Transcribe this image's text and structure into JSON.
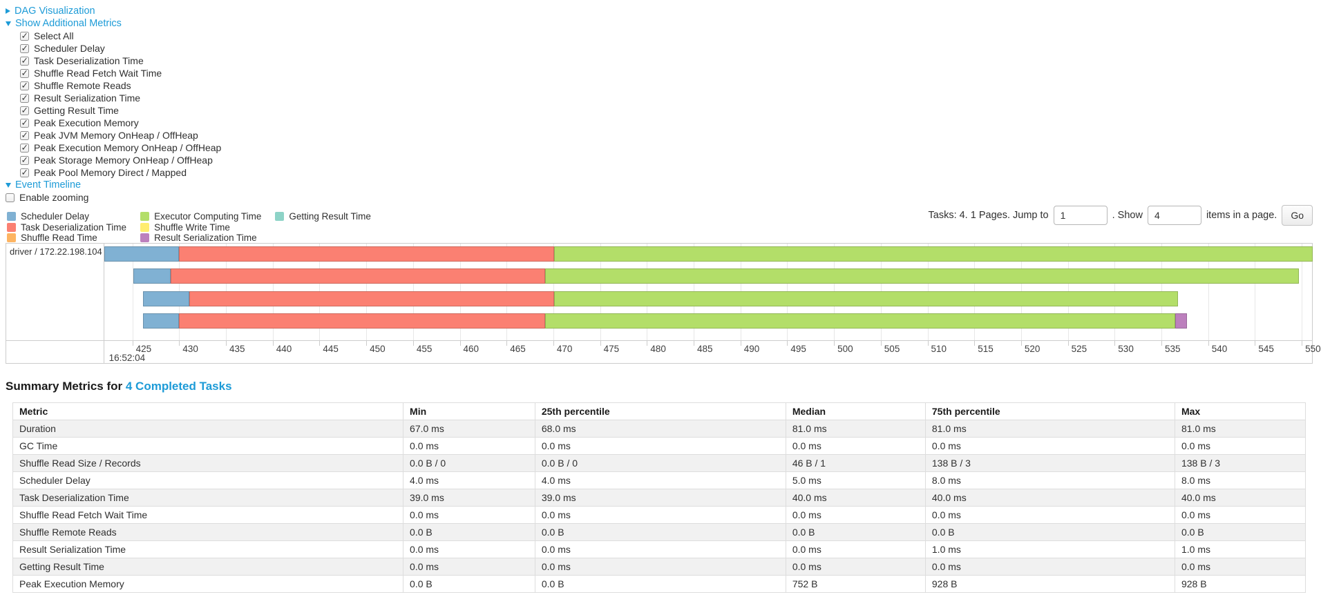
{
  "controls": {
    "dag_label": "DAG Visualization",
    "metrics_label": "Show Additional Metrics",
    "metric_checkboxes": [
      "Select All",
      "Scheduler Delay",
      "Task Deserialization Time",
      "Shuffle Read Fetch Wait Time",
      "Shuffle Remote Reads",
      "Result Serialization Time",
      "Getting Result Time",
      "Peak Execution Memory",
      "Peak JVM Memory OnHeap / OffHeap",
      "Peak Execution Memory OnHeap / OffHeap",
      "Peak Storage Memory OnHeap / OffHeap",
      "Peak Pool Memory Direct / Mapped"
    ],
    "event_timeline_label": "Event Timeline",
    "enable_zooming_label": "Enable zooming"
  },
  "legend": {
    "columns": [
      [
        {
          "label": "Scheduler Delay",
          "color": "#80B1D3"
        },
        {
          "label": "Task Deserialization Time",
          "color": "#FB8072"
        },
        {
          "label": "Shuffle Read Time",
          "color": "#FDB462"
        }
      ],
      [
        {
          "label": "Executor Computing Time",
          "color": "#B3DE69"
        },
        {
          "label": "Shuffle Write Time",
          "color": "#FFED6F"
        },
        {
          "label": "Result Serialization Time",
          "color": "#BC80BD"
        }
      ],
      [
        {
          "label": "Getting Result Time",
          "color": "#8DD3C7"
        }
      ]
    ]
  },
  "pagination": {
    "tasks_text": "Tasks: 4. 1 Pages. Jump to",
    "jump_value": "1",
    "show_text": ". Show",
    "show_value": "4",
    "items_text": "items in a page.",
    "go_label": "Go"
  },
  "chart_data": {
    "type": "timeline",
    "executor_label": "driver / 172.22.198.104",
    "axis": {
      "min": 422.0,
      "max": 551.1,
      "tick_start": 425,
      "tick_end": 550,
      "tick_step": 5,
      "unit": "ms",
      "start_time_label": "16:52:04",
      "start_time_tick": 425
    },
    "colors": {
      "scheduler_delay": "#80B1D3",
      "task_deserialization": "#FB8072",
      "shuffle_read": "#FDB462",
      "executor_computing": "#B3DE69",
      "shuffle_write": "#FFED6F",
      "result_serialization": "#BC80BD",
      "getting_result": "#8DD3C7"
    },
    "tasks": [
      {
        "segments": [
          {
            "type": "scheduler_delay",
            "start": 422.0,
            "end": 430.0
          },
          {
            "type": "task_deserialization",
            "start": 430.0,
            "end": 470.1
          },
          {
            "type": "executor_computing",
            "start": 470.1,
            "end": 551.2
          }
        ]
      },
      {
        "segments": [
          {
            "type": "scheduler_delay",
            "start": 425.1,
            "end": 429.1
          },
          {
            "type": "task_deserialization",
            "start": 429.1,
            "end": 469.1
          },
          {
            "type": "executor_computing",
            "start": 469.1,
            "end": 549.7
          }
        ]
      },
      {
        "segments": [
          {
            "type": "scheduler_delay",
            "start": 426.1,
            "end": 431.1
          },
          {
            "type": "task_deserialization",
            "start": 431.1,
            "end": 470.1
          },
          {
            "type": "executor_computing",
            "start": 470.1,
            "end": 536.8
          }
        ]
      },
      {
        "segments": [
          {
            "type": "scheduler_delay",
            "start": 426.1,
            "end": 430.0
          },
          {
            "type": "task_deserialization",
            "start": 430.0,
            "end": 469.1
          },
          {
            "type": "executor_computing",
            "start": 469.1,
            "end": 536.5
          },
          {
            "type": "result_serialization",
            "start": 536.5,
            "end": 537.7
          }
        ]
      }
    ]
  },
  "summary": {
    "title_prefix": "Summary Metrics for",
    "title_link": "4 Completed Tasks",
    "columns": [
      "Metric",
      "Min",
      "25th percentile",
      "Median",
      "75th percentile",
      "Max"
    ],
    "col_widths_pct": [
      30.2,
      10.2,
      19.4,
      10.8,
      19.3,
      10.1
    ],
    "rows": [
      {
        "metric": "Duration",
        "values": [
          "67.0 ms",
          "68.0 ms",
          "81.0 ms",
          "81.0 ms",
          "81.0 ms"
        ]
      },
      {
        "metric": "GC Time",
        "values": [
          "0.0 ms",
          "0.0 ms",
          "0.0 ms",
          "0.0 ms",
          "0.0 ms"
        ]
      },
      {
        "metric": "Shuffle Read Size / Records",
        "values": [
          "0.0 B / 0",
          "0.0 B / 0",
          "46 B / 1",
          "138 B / 3",
          "138 B / 3"
        ]
      },
      {
        "metric": "Scheduler Delay",
        "values": [
          "4.0 ms",
          "4.0 ms",
          "5.0 ms",
          "8.0 ms",
          "8.0 ms"
        ]
      },
      {
        "metric": "Task Deserialization Time",
        "values": [
          "39.0 ms",
          "39.0 ms",
          "40.0 ms",
          "40.0 ms",
          "40.0 ms"
        ]
      },
      {
        "metric": "Shuffle Read Fetch Wait Time",
        "values": [
          "0.0 ms",
          "0.0 ms",
          "0.0 ms",
          "0.0 ms",
          "0.0 ms"
        ]
      },
      {
        "metric": "Shuffle Remote Reads",
        "values": [
          "0.0 B",
          "0.0 B",
          "0.0 B",
          "0.0 B",
          "0.0 B"
        ]
      },
      {
        "metric": "Result Serialization Time",
        "values": [
          "0.0 ms",
          "0.0 ms",
          "0.0 ms",
          "1.0 ms",
          "1.0 ms"
        ]
      },
      {
        "metric": "Getting Result Time",
        "values": [
          "0.0 ms",
          "0.0 ms",
          "0.0 ms",
          "0.0 ms",
          "0.0 ms"
        ]
      },
      {
        "metric": "Peak Execution Memory",
        "values": [
          "0.0 B",
          "0.0 B",
          "752 B",
          "928 B",
          "928 B"
        ]
      }
    ]
  }
}
